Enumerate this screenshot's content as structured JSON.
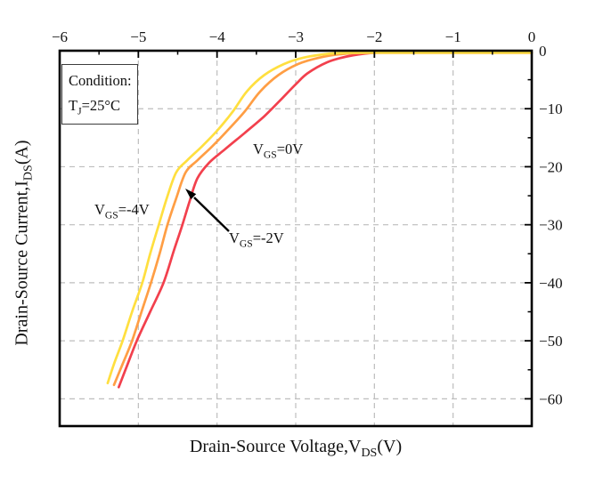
{
  "figure": {
    "background": "#ffffff",
    "condition_box": {
      "line1": "Condition:",
      "line2_pre": "T",
      "line2_sub": "J",
      "line2_post": "=25°C"
    }
  },
  "chart_data": {
    "type": "line",
    "title": "",
    "xlabel": "Drain-Source Voltage,VDS(V)",
    "ylabel": "Drain-Source Current,IDS(A)",
    "x_axis": {
      "title_pre": "Drain-Source Voltage,V",
      "title_sub": "DS",
      "title_post": "(V)",
      "lim": [
        -6,
        0
      ],
      "ticks": [
        {
          "v": -6,
          "label": "−6"
        },
        {
          "v": -5,
          "label": "−5"
        },
        {
          "v": -4,
          "label": "−4"
        },
        {
          "v": -3,
          "label": "−3"
        },
        {
          "v": -2,
          "label": "−2"
        },
        {
          "v": -1,
          "label": "−1"
        },
        {
          "v": 0,
          "label": "0"
        }
      ],
      "minor_ticks": [
        -5.5,
        -4.5,
        -3.5,
        -2.5,
        -1.5,
        -0.5
      ]
    },
    "y_axis": {
      "title_pre": "Drain-Source Current,I",
      "title_sub": "DS",
      "title_post": "(A)",
      "lim": [
        -64.7,
        0
      ],
      "ticks": [
        {
          "v": 0,
          "label": "0"
        },
        {
          "v": -10,
          "label": "−10"
        },
        {
          "v": -20,
          "label": "−20"
        },
        {
          "v": -30,
          "label": "−30"
        },
        {
          "v": -40,
          "label": "−40"
        },
        {
          "v": -50,
          "label": "−50"
        },
        {
          "v": -60,
          "label": "−60"
        }
      ],
      "minor_ticks": [
        -5,
        -15,
        -25,
        -35,
        -45,
        -55
      ]
    },
    "grid": {
      "style": "dashed",
      "color": "#bdbdbd"
    },
    "series": [
      {
        "name": "VGS=0V",
        "vgs": "0V",
        "color": "#f2404d",
        "points": [
          [
            0,
            0
          ],
          [
            -1.0,
            0
          ],
          [
            -1.4,
            0
          ],
          [
            -1.75,
            -0.1
          ],
          [
            -2.05,
            -0.4
          ],
          [
            -2.35,
            -1.0
          ],
          [
            -2.6,
            -2.0
          ],
          [
            -2.85,
            -3.9
          ],
          [
            -3.0,
            -5.8
          ],
          [
            -3.2,
            -8.6
          ],
          [
            -3.4,
            -11.3
          ],
          [
            -3.65,
            -14.2
          ],
          [
            -3.9,
            -17.0
          ],
          [
            -4.1,
            -19.3
          ],
          [
            -4.25,
            -22.0
          ],
          [
            -4.35,
            -26.0
          ],
          [
            -4.44,
            -30.0
          ],
          [
            -4.55,
            -34.5
          ],
          [
            -4.68,
            -40.0
          ],
          [
            -4.85,
            -45.0
          ],
          [
            -5.02,
            -50.0
          ],
          [
            -5.15,
            -54.5
          ],
          [
            -5.25,
            -58.0
          ]
        ]
      },
      {
        "name": "VGS=-2V",
        "vgs": "-2V",
        "color": "#ff9e44",
        "points": [
          [
            0,
            0
          ],
          [
            -1.1,
            0
          ],
          [
            -1.7,
            -0.05
          ],
          [
            -2.1,
            -0.2
          ],
          [
            -2.4,
            -0.55
          ],
          [
            -2.7,
            -1.2
          ],
          [
            -2.97,
            -2.3
          ],
          [
            -3.22,
            -4.2
          ],
          [
            -3.45,
            -7.0
          ],
          [
            -3.65,
            -10.5
          ],
          [
            -3.87,
            -13.8
          ],
          [
            -4.07,
            -16.6
          ],
          [
            -4.25,
            -18.9
          ],
          [
            -4.4,
            -21.0
          ],
          [
            -4.52,
            -25.5
          ],
          [
            -4.63,
            -30.0
          ],
          [
            -4.73,
            -35.0
          ],
          [
            -4.84,
            -40.0
          ],
          [
            -4.96,
            -45.0
          ],
          [
            -5.08,
            -50.0
          ],
          [
            -5.2,
            -54.0
          ],
          [
            -5.31,
            -57.6
          ]
        ]
      },
      {
        "name": "VGS=-4V",
        "vgs": "-4V",
        "color": "#ffdf3f",
        "points": [
          [
            0,
            0
          ],
          [
            -1.2,
            0
          ],
          [
            -1.9,
            -0.05
          ],
          [
            -2.3,
            -0.2
          ],
          [
            -2.6,
            -0.55
          ],
          [
            -2.9,
            -1.2
          ],
          [
            -3.15,
            -2.3
          ],
          [
            -3.4,
            -4.2
          ],
          [
            -3.62,
            -7.0
          ],
          [
            -3.8,
            -10.5
          ],
          [
            -4.0,
            -13.8
          ],
          [
            -4.2,
            -16.6
          ],
          [
            -4.38,
            -18.9
          ],
          [
            -4.52,
            -21.0
          ],
          [
            -4.64,
            -25.5
          ],
          [
            -4.74,
            -30.0
          ],
          [
            -4.85,
            -35.0
          ],
          [
            -4.95,
            -40.0
          ],
          [
            -5.08,
            -45.0
          ],
          [
            -5.2,
            -50.0
          ],
          [
            -5.31,
            -54.0
          ],
          [
            -5.39,
            -57.3
          ]
        ]
      }
    ],
    "annotations": {
      "vgs0": {
        "pre": "V",
        "sub": "GS",
        "post": "=0V"
      },
      "vgs2": {
        "pre": "V",
        "sub": "GS",
        "post": "=-2V"
      },
      "vgs4": {
        "pre": "V",
        "sub": "GS",
        "post": "=-4V"
      }
    }
  }
}
